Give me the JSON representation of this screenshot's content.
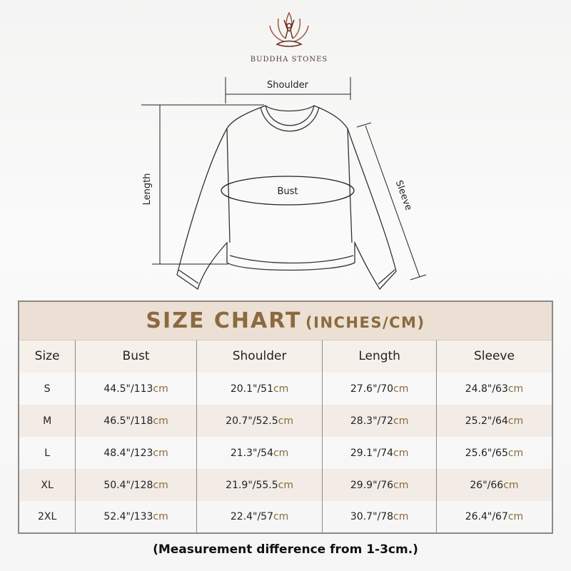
{
  "brand": {
    "name": "BUDDHA STONES"
  },
  "diagram": {
    "labels": {
      "shoulder": "Shoulder",
      "length": "Length",
      "bust": "Bust",
      "sleeve": "Sleeve"
    }
  },
  "size_chart": {
    "title": "SIZE CHART",
    "subtitle": "(INCHES/CM)",
    "headers": [
      "Size",
      "Bust",
      "Shoulder",
      "Length",
      "Sleeve"
    ],
    "unit_suffix": "cm",
    "rows": [
      {
        "size": "S",
        "cells": [
          {
            "in": "44.5\"/113"
          },
          {
            "in": "20.1\"/51"
          },
          {
            "in": "27.6\"/70"
          },
          {
            "in": "24.8\"/63"
          }
        ]
      },
      {
        "size": "M",
        "cells": [
          {
            "in": "46.5\"/118"
          },
          {
            "in": "20.7\"/52.5"
          },
          {
            "in": "28.3\"/72"
          },
          {
            "in": "25.2\"/64"
          }
        ]
      },
      {
        "size": "L",
        "cells": [
          {
            "in": "48.4\"/123"
          },
          {
            "in": "21.3\"/54"
          },
          {
            "in": "29.1\"/74"
          },
          {
            "in": "25.6\"/65"
          }
        ]
      },
      {
        "size": "XL",
        "cells": [
          {
            "in": "50.4\"/128"
          },
          {
            "in": "21.9\"/55.5"
          },
          {
            "in": "29.9\"/76"
          },
          {
            "in": "26\"/66"
          }
        ]
      },
      {
        "size": "2XL",
        "cells": [
          {
            "in": "52.4\"/133"
          },
          {
            "in": "22.4\"/57"
          },
          {
            "in": "30.7\"/78"
          },
          {
            "in": "26.4\"/67"
          }
        ]
      }
    ]
  },
  "note": "(Measurement difference from 1-3cm.)",
  "colors": {
    "accent": "#8b6a3e",
    "title_bg": "#ecdfd4",
    "logo": "#8a4a35"
  }
}
